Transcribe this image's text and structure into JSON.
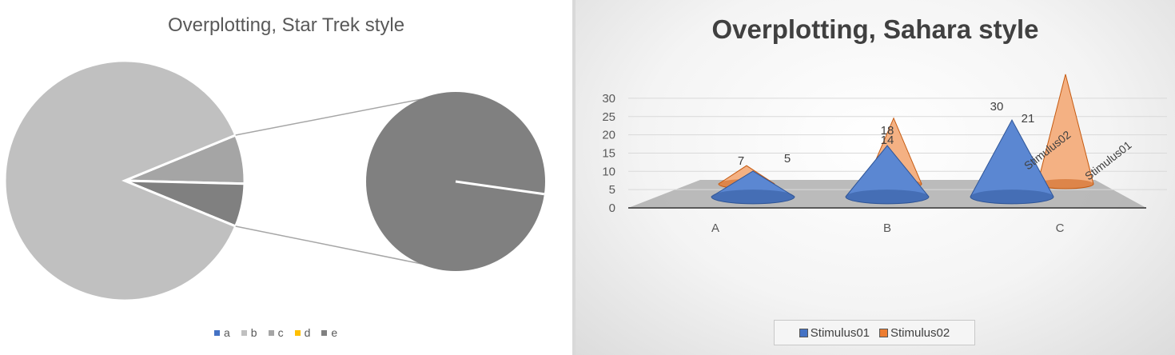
{
  "chart_data": [
    {
      "type": "pie",
      "title": "Overplotting, Star Trek style",
      "categories": [
        "a",
        "b",
        "c",
        "d",
        "e"
      ],
      "slices": [
        {
          "label": "b",
          "value": 87.6
        },
        {
          "label": "c",
          "value": 6.6
        },
        {
          "label": "e",
          "value": 5.8
        }
      ],
      "secondary_pie_split": [
        95.5,
        4.5
      ],
      "legend": [
        {
          "label": "a",
          "color": "#4472c4"
        },
        {
          "label": "b",
          "color": "#c0c0c0"
        },
        {
          "label": "c",
          "color": "#a5a5a5"
        },
        {
          "label": "d",
          "color": "#ffc000"
        },
        {
          "label": "e",
          "color": "#808080"
        }
      ],
      "legend_position": "bottom"
    },
    {
      "type": "bar",
      "style": "3d-cone",
      "title": "Overplotting, Sahara style",
      "categories": [
        "A",
        "B",
        "C"
      ],
      "series": [
        {
          "name": "Stimulus01",
          "values": [
            7,
            14,
            21
          ],
          "color": "#4472c4"
        },
        {
          "name": "Stimulus02",
          "values": [
            5,
            18,
            30
          ],
          "color": "#ed7d31"
        }
      ],
      "yticks": [
        "0",
        "5",
        "10",
        "15",
        "20",
        "25",
        "30"
      ],
      "ylim": [
        0,
        30
      ],
      "depth_labels": [
        "Stimulus02",
        "Stimulus01"
      ],
      "legend_position": "bottom"
    }
  ]
}
